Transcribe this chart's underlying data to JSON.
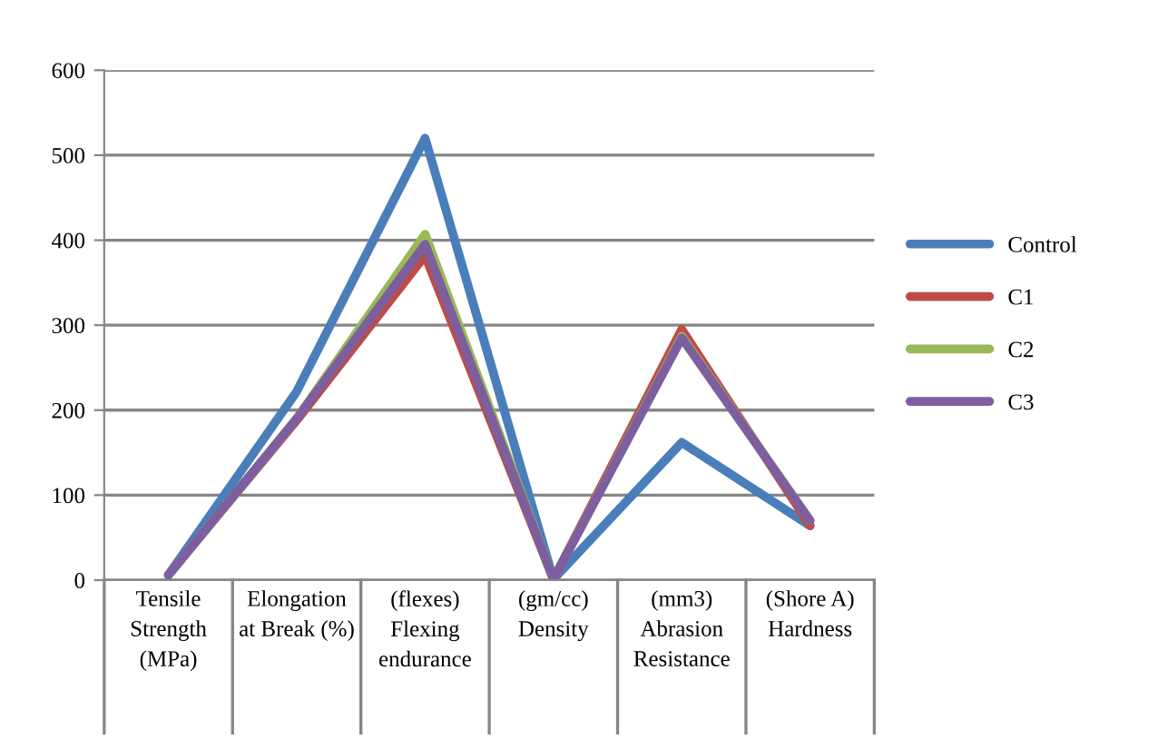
{
  "chart_data": {
    "type": "line",
    "categories": [
      "Tensile\nStrength\n(MPa)",
      "Elongation\nat Break (%)",
      "(flexes)\nFlexing\nendurance",
      "(gm/cc)\nDensity",
      "(mm3)\nAbrasion\nResistance",
      "(Shore A)\nHardness"
    ],
    "series": [
      {
        "name": "Control",
        "color": "#4a7ebb",
        "values": [
          6,
          222,
          520,
          1,
          162,
          64
        ]
      },
      {
        "name": "C1",
        "color": "#be4b48",
        "values": [
          6,
          188,
          382,
          1,
          295,
          64
        ]
      },
      {
        "name": "C2",
        "color": "#98b954",
        "values": [
          6,
          190,
          407,
          1,
          287,
          70
        ]
      },
      {
        "name": "C3",
        "color": "#7d5fa0",
        "values": [
          6,
          190,
          395,
          1,
          285,
          70
        ]
      }
    ],
    "ylim": [
      0,
      600
    ],
    "yticks": [
      0,
      100,
      200,
      300,
      400,
      500,
      600
    ],
    "grid": "y",
    "legend": "right",
    "marker": "none",
    "line_style": "solid"
  }
}
